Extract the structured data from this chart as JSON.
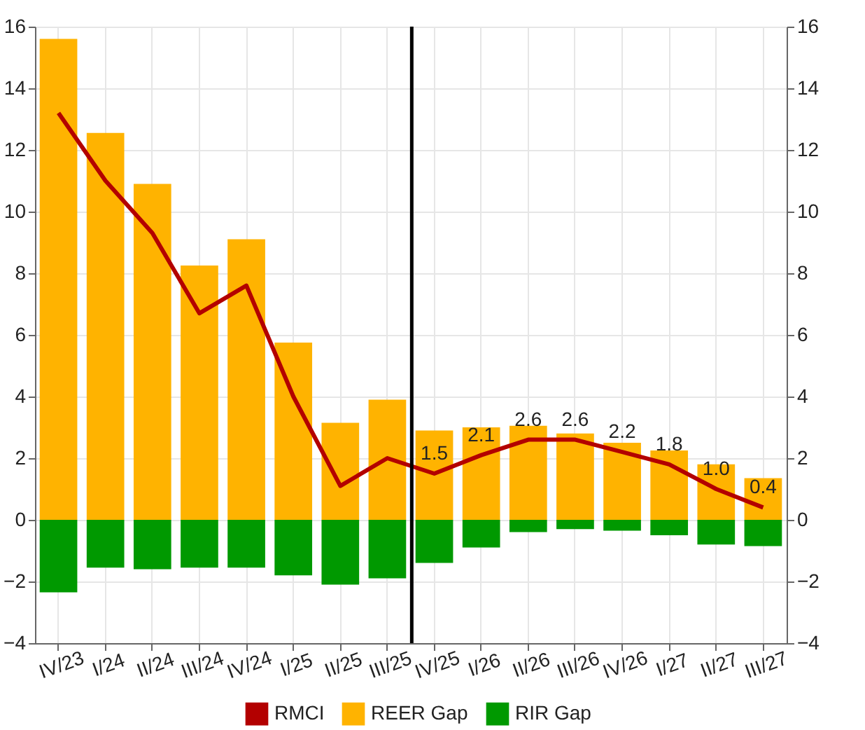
{
  "chart_data": {
    "type": "bar",
    "stacked": true,
    "categories": [
      "IV/23",
      "I/24",
      "II/24",
      "III/24",
      "IV/24",
      "I/25",
      "II/25",
      "III/25",
      "IV/25",
      "I/26",
      "II/26",
      "III/26",
      "IV/26",
      "I/27",
      "II/27",
      "III/27"
    ],
    "series": [
      {
        "name": "RMCI",
        "type": "line",
        "color": "#b30000",
        "values": [
          13.2,
          11.0,
          9.3,
          6.7,
          7.6,
          4.0,
          1.1,
          2.0,
          1.5,
          2.1,
          2.6,
          2.6,
          2.2,
          1.8,
          1.0,
          0.4
        ],
        "value_labels": [
          null,
          null,
          null,
          null,
          null,
          null,
          null,
          null,
          "1.5",
          "2.1",
          "2.6",
          "2.6",
          "2.2",
          "1.8",
          "1.0",
          "0.4"
        ]
      },
      {
        "name": "REER Gap",
        "color": "#ffb300",
        "values": [
          15.6,
          12.55,
          10.9,
          8.25,
          9.1,
          5.75,
          3.15,
          3.9,
          2.9,
          3.0,
          3.05,
          2.8,
          2.5,
          2.25,
          1.8,
          1.35
        ]
      },
      {
        "name": "RIR Gap",
        "color": "#009900",
        "values": [
          -2.35,
          -1.55,
          -1.6,
          -1.55,
          -1.55,
          -1.8,
          -2.1,
          -1.9,
          -1.4,
          -0.9,
          -0.4,
          -0.3,
          -0.35,
          -0.5,
          -0.8,
          -0.85
        ]
      }
    ],
    "ylim": [
      -4,
      16
    ],
    "yticks": [
      -4,
      -2,
      0,
      2,
      4,
      6,
      8,
      10,
      12,
      14,
      16
    ],
    "y2lim": [
      -4,
      16
    ],
    "y2ticks": [
      -4,
      -2,
      0,
      2,
      4,
      6,
      8,
      10,
      12,
      14,
      16
    ],
    "ref_lines": [
      {
        "axis": "x",
        "value": "IV/25",
        "color": "#000000"
      }
    ],
    "grid": true,
    "legend": "bottom"
  }
}
